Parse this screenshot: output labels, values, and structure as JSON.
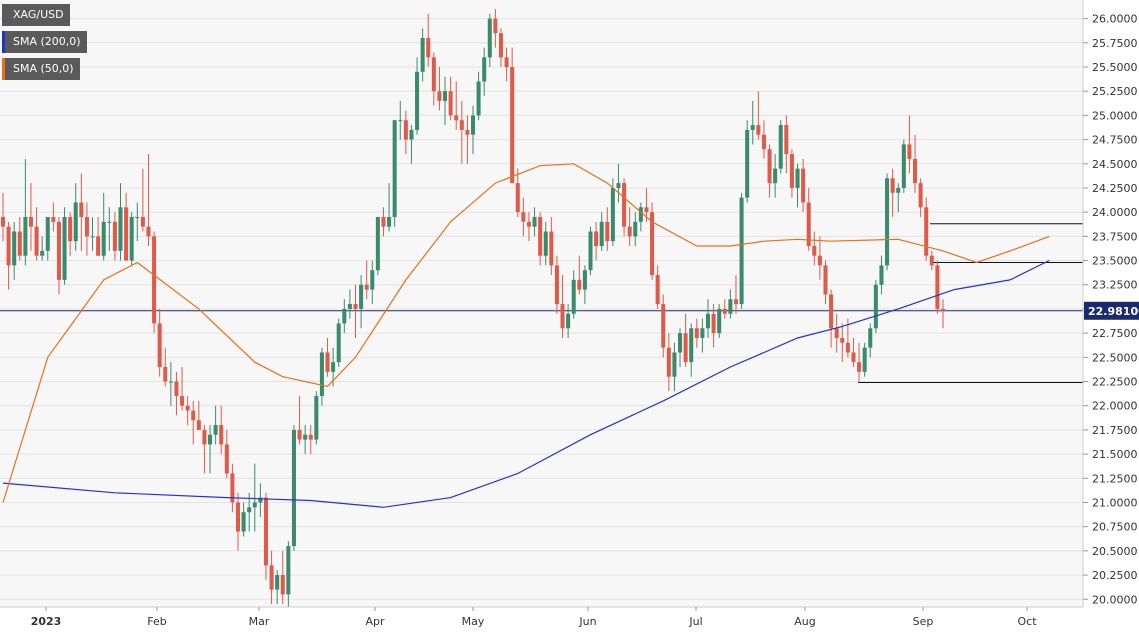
{
  "chart_data": {
    "type": "candlestick",
    "title": "XAG/USD",
    "x_tick_labels": [
      "2023",
      "Feb",
      "Mar",
      "Apr",
      "May",
      "Jun",
      "Jul",
      "Aug",
      "Sep",
      "Oct"
    ],
    "y_tick_labels": [
      "20.0000",
      "20.2500",
      "20.5000",
      "20.7500",
      "21.0000",
      "21.2500",
      "21.5000",
      "21.7500",
      "22.0000",
      "22.2500",
      "22.5000",
      "22.7500",
      "23.0000",
      "23.2500",
      "23.5000",
      "23.7500",
      "24.0000",
      "24.2500",
      "24.5000",
      "24.7500",
      "25.0000",
      "25.2500",
      "25.5000",
      "25.7500",
      "26.0000"
    ],
    "ylim": [
      19.92,
      26.12
    ],
    "current_price_label": "22.98100",
    "current_price": 22.981,
    "horizontal_levels": [
      23.88,
      23.48,
      22.24
    ],
    "legend": [
      {
        "name": "SMA (200,0)",
        "color": "#2233cc"
      },
      {
        "name": "SMA (50,0)",
        "color": "#e8701a"
      }
    ],
    "colors": {
      "up": "#3a8a6e",
      "down": "#e05a4a",
      "sma200": "#2233cc",
      "sma50": "#e8701a",
      "current": "#1a2a6c"
    },
    "sma200_keypoints": [
      [
        0,
        21.2
      ],
      [
        20,
        21.1
      ],
      [
        40,
        21.05
      ],
      [
        55,
        21.02
      ],
      [
        68,
        20.95
      ],
      [
        80,
        21.05
      ],
      [
        92,
        21.3
      ],
      [
        105,
        21.7
      ],
      [
        118,
        22.05
      ],
      [
        130,
        22.4
      ],
      [
        142,
        22.7
      ],
      [
        150,
        22.82
      ],
      [
        160,
        23.0
      ],
      [
        170,
        23.2
      ],
      [
        180,
        23.3
      ],
      [
        187,
        23.5
      ]
    ],
    "sma50_keypoints": [
      [
        0,
        21.0
      ],
      [
        8,
        22.5
      ],
      [
        18,
        23.3
      ],
      [
        24,
        23.48
      ],
      [
        35,
        23.0
      ],
      [
        45,
        22.45
      ],
      [
        50,
        22.3
      ],
      [
        58,
        22.2
      ],
      [
        63,
        22.5
      ],
      [
        72,
        23.3
      ],
      [
        80,
        23.9
      ],
      [
        88,
        24.3
      ],
      [
        96,
        24.48
      ],
      [
        102,
        24.5
      ],
      [
        108,
        24.3
      ],
      [
        116,
        23.9
      ],
      [
        124,
        23.65
      ],
      [
        130,
        23.65
      ],
      [
        136,
        23.7
      ],
      [
        142,
        23.72
      ],
      [
        148,
        23.7
      ],
      [
        160,
        23.72
      ],
      [
        168,
        23.6
      ],
      [
        174,
        23.48
      ],
      [
        180,
        23.6
      ],
      [
        187,
        23.75
      ]
    ],
    "ohlc": [
      [
        23.95,
        24.2,
        23.7,
        23.85
      ],
      [
        23.85,
        23.9,
        23.2,
        23.45
      ],
      [
        23.45,
        23.9,
        23.3,
        23.8
      ],
      [
        23.8,
        23.95,
        23.5,
        23.55
      ],
      [
        23.55,
        24.55,
        23.45,
        23.95
      ],
      [
        23.95,
        24.3,
        23.6,
        23.85
      ],
      [
        23.85,
        24.05,
        23.5,
        23.55
      ],
      [
        23.55,
        23.75,
        23.5,
        23.6
      ],
      [
        23.6,
        23.95,
        23.5,
        23.95
      ],
      [
        23.95,
        24.1,
        23.8,
        23.9
      ],
      [
        23.9,
        23.95,
        23.15,
        23.3
      ],
      [
        23.3,
        24.05,
        23.25,
        23.95
      ],
      [
        23.95,
        24.0,
        23.55,
        23.7
      ],
      [
        23.7,
        24.3,
        23.6,
        24.1
      ],
      [
        24.1,
        24.4,
        23.6,
        23.95
      ],
      [
        23.95,
        24.1,
        23.55,
        23.75
      ],
      [
        23.75,
        23.95,
        23.6,
        23.75
      ],
      [
        23.75,
        23.95,
        23.55,
        23.55
      ],
      [
        23.55,
        24.2,
        23.5,
        23.9
      ],
      [
        23.9,
        24.05,
        23.6,
        23.9
      ],
      [
        23.9,
        24.0,
        23.5,
        23.6
      ],
      [
        23.6,
        24.3,
        23.5,
        24.05
      ],
      [
        24.05,
        24.2,
        23.5,
        23.5
      ],
      [
        23.5,
        24.0,
        23.45,
        23.95
      ],
      [
        23.95,
        24.1,
        23.7,
        23.95
      ],
      [
        23.95,
        24.45,
        23.8,
        23.85
      ],
      [
        23.85,
        24.6,
        23.65,
        23.75
      ],
      [
        23.75,
        23.8,
        22.75,
        22.85
      ],
      [
        22.85,
        23.0,
        22.3,
        22.4
      ],
      [
        22.4,
        22.6,
        22.2,
        22.25
      ],
      [
        22.25,
        22.45,
        22.0,
        22.25
      ],
      [
        22.25,
        22.35,
        21.9,
        22.1
      ],
      [
        22.1,
        22.4,
        21.95,
        22.0
      ],
      [
        22.0,
        22.1,
        21.8,
        21.95
      ],
      [
        21.95,
        22.05,
        21.6,
        21.85
      ],
      [
        21.85,
        22.05,
        21.75,
        21.75
      ],
      [
        21.75,
        21.8,
        21.3,
        21.6
      ],
      [
        21.6,
        21.8,
        21.3,
        21.7
      ],
      [
        21.7,
        22.0,
        21.6,
        21.8
      ],
      [
        21.8,
        22.0,
        21.5,
        21.6
      ],
      [
        21.6,
        21.75,
        21.25,
        21.3
      ],
      [
        21.3,
        21.4,
        20.9,
        21.0
      ],
      [
        21.0,
        21.1,
        20.5,
        20.7
      ],
      [
        20.7,
        21.0,
        20.65,
        20.9
      ],
      [
        20.9,
        21.1,
        20.7,
        20.95
      ],
      [
        20.95,
        21.4,
        20.7,
        21.0
      ],
      [
        21.0,
        21.2,
        20.85,
        21.05
      ],
      [
        21.05,
        21.1,
        20.2,
        20.35
      ],
      [
        20.35,
        20.5,
        19.95,
        20.1
      ],
      [
        20.1,
        20.3,
        19.95,
        20.25
      ],
      [
        20.25,
        20.5,
        19.95,
        20.05
      ],
      [
        20.05,
        20.6,
        19.92,
        20.55
      ],
      [
        20.55,
        21.8,
        20.5,
        21.75
      ],
      [
        21.75,
        22.1,
        21.6,
        21.65
      ],
      [
        21.65,
        21.8,
        21.5,
        21.7
      ],
      [
        21.7,
        21.8,
        21.5,
        21.65
      ],
      [
        21.65,
        22.15,
        21.6,
        22.1
      ],
      [
        22.1,
        22.6,
        22.0,
        22.55
      ],
      [
        22.55,
        22.7,
        22.3,
        22.35
      ],
      [
        22.35,
        22.6,
        22.2,
        22.45
      ],
      [
        22.45,
        22.9,
        22.4,
        22.85
      ],
      [
        22.85,
        23.1,
        22.75,
        23.0
      ],
      [
        23.0,
        23.2,
        22.9,
        23.05
      ],
      [
        23.05,
        23.25,
        22.7,
        23.0
      ],
      [
        23.0,
        23.35,
        22.8,
        23.25
      ],
      [
        23.25,
        23.5,
        23.1,
        23.2
      ],
      [
        23.2,
        23.5,
        23.05,
        23.4
      ],
      [
        23.4,
        23.95,
        23.35,
        23.95
      ],
      [
        23.95,
        24.05,
        23.75,
        23.85
      ],
      [
        23.85,
        24.3,
        23.8,
        23.95
      ],
      [
        23.95,
        24.95,
        23.85,
        24.95
      ],
      [
        24.95,
        25.15,
        24.75,
        24.95
      ],
      [
        24.95,
        25.05,
        24.6,
        24.75
      ],
      [
        24.75,
        24.9,
        24.5,
        24.85
      ],
      [
        24.85,
        25.6,
        24.8,
        25.45
      ],
      [
        25.45,
        25.9,
        25.35,
        25.8
      ],
      [
        25.8,
        26.05,
        25.5,
        25.6
      ],
      [
        25.6,
        25.65,
        25.1,
        25.25
      ],
      [
        25.25,
        25.5,
        25.05,
        25.15
      ],
      [
        25.15,
        25.4,
        24.9,
        25.25
      ],
      [
        25.25,
        25.4,
        24.95,
        25.0
      ],
      [
        25.0,
        25.35,
        24.85,
        24.95
      ],
      [
        24.95,
        25.15,
        24.5,
        24.85
      ],
      [
        24.85,
        25.0,
        24.5,
        24.8
      ],
      [
        24.8,
        25.1,
        24.6,
        25.0
      ],
      [
        25.0,
        25.45,
        24.95,
        25.35
      ],
      [
        25.35,
        25.7,
        25.2,
        25.6
      ],
      [
        25.6,
        26.05,
        25.5,
        26.0
      ],
      [
        26.0,
        26.1,
        25.7,
        25.85
      ],
      [
        25.85,
        25.9,
        25.5,
        25.6
      ],
      [
        25.6,
        25.7,
        25.35,
        25.5
      ],
      [
        25.5,
        25.7,
        24.3,
        24.3
      ],
      [
        24.3,
        24.45,
        23.95,
        24.0
      ],
      [
        24.0,
        24.15,
        23.75,
        23.9
      ],
      [
        23.9,
        24.0,
        23.7,
        23.85
      ],
      [
        23.85,
        24.05,
        23.75,
        23.95
      ],
      [
        23.95,
        24.0,
        23.45,
        23.55
      ],
      [
        23.55,
        23.9,
        23.45,
        23.8
      ],
      [
        23.8,
        23.95,
        23.35,
        23.45
      ],
      [
        23.45,
        23.55,
        22.95,
        23.05
      ],
      [
        23.05,
        23.35,
        22.7,
        22.8
      ],
      [
        22.8,
        23.05,
        22.7,
        22.95
      ],
      [
        22.95,
        23.4,
        22.9,
        23.3
      ],
      [
        23.3,
        23.55,
        23.15,
        23.2
      ],
      [
        23.2,
        23.45,
        23.05,
        23.4
      ],
      [
        23.4,
        23.85,
        23.35,
        23.8
      ],
      [
        23.8,
        23.9,
        23.5,
        23.65
      ],
      [
        23.65,
        24.0,
        23.6,
        23.9
      ],
      [
        23.9,
        24.05,
        23.6,
        23.7
      ],
      [
        23.7,
        24.35,
        23.65,
        24.25
      ],
      [
        24.25,
        24.5,
        24.1,
        24.3
      ],
      [
        24.3,
        24.35,
        23.75,
        23.85
      ],
      [
        23.85,
        24.05,
        23.65,
        23.75
      ],
      [
        23.75,
        24.0,
        23.65,
        23.9
      ],
      [
        23.9,
        24.1,
        23.8,
        24.05
      ],
      [
        24.05,
        24.25,
        23.9,
        24.0
      ],
      [
        24.0,
        24.1,
        23.3,
        23.35
      ],
      [
        23.35,
        23.45,
        23.0,
        23.05
      ],
      [
        23.05,
        23.15,
        22.5,
        22.6
      ],
      [
        22.6,
        22.75,
        22.15,
        22.3
      ],
      [
        22.3,
        22.65,
        22.15,
        22.55
      ],
      [
        22.55,
        22.8,
        22.4,
        22.75
      ],
      [
        22.75,
        22.95,
        22.4,
        22.45
      ],
      [
        22.45,
        22.85,
        22.3,
        22.8
      ],
      [
        22.8,
        22.9,
        22.6,
        22.7
      ],
      [
        22.7,
        22.9,
        22.55,
        22.8
      ],
      [
        22.8,
        23.1,
        22.7,
        22.95
      ],
      [
        22.95,
        23.05,
        22.6,
        22.75
      ],
      [
        22.75,
        23.05,
        22.7,
        23.0
      ],
      [
        23.0,
        23.1,
        22.9,
        22.95
      ],
      [
        22.95,
        23.2,
        22.9,
        23.1
      ],
      [
        23.1,
        23.35,
        22.95,
        23.05
      ],
      [
        23.05,
        24.2,
        23.0,
        24.15
      ],
      [
        24.15,
        24.95,
        24.1,
        24.85
      ],
      [
        24.85,
        25.15,
        24.7,
        24.9
      ],
      [
        24.9,
        25.25,
        24.75,
        24.8
      ],
      [
        24.8,
        24.95,
        24.55,
        24.65
      ],
      [
        24.65,
        24.7,
        24.15,
        24.3
      ],
      [
        24.3,
        24.6,
        24.15,
        24.45
      ],
      [
        24.45,
        24.95,
        24.4,
        24.9
      ],
      [
        24.9,
        25.0,
        24.4,
        24.6
      ],
      [
        24.6,
        24.65,
        24.15,
        24.25
      ],
      [
        24.25,
        24.5,
        24.05,
        24.45
      ],
      [
        24.45,
        24.55,
        24.0,
        24.1
      ],
      [
        24.1,
        24.25,
        23.6,
        23.65
      ],
      [
        23.65,
        23.8,
        23.45,
        23.55
      ],
      [
        23.55,
        23.75,
        23.3,
        23.45
      ],
      [
        23.45,
        23.5,
        23.05,
        23.15
      ],
      [
        23.15,
        23.2,
        22.6,
        22.8
      ],
      [
        22.8,
        22.95,
        22.55,
        22.7
      ],
      [
        22.7,
        22.85,
        22.45,
        22.65
      ],
      [
        22.65,
        22.9,
        22.5,
        22.55
      ],
      [
        22.55,
        22.7,
        22.4,
        22.45
      ],
      [
        22.45,
        22.65,
        22.24,
        22.35
      ],
      [
        22.35,
        22.65,
        22.3,
        22.6
      ],
      [
        22.6,
        22.85,
        22.5,
        22.8
      ],
      [
        22.8,
        23.3,
        22.75,
        23.25
      ],
      [
        23.25,
        23.55,
        23.15,
        23.45
      ],
      [
        23.45,
        24.4,
        23.4,
        24.35
      ],
      [
        24.35,
        24.45,
        23.95,
        24.2
      ],
      [
        24.2,
        24.3,
        24.0,
        24.25
      ],
      [
        24.25,
        24.75,
        24.2,
        24.7
      ],
      [
        24.7,
        25.0,
        24.4,
        24.55
      ],
      [
        24.55,
        24.8,
        24.2,
        24.3
      ],
      [
        24.3,
        24.35,
        23.95,
        24.05
      ],
      [
        24.05,
        24.15,
        23.5,
        23.55
      ],
      [
        23.55,
        23.6,
        23.4,
        23.45
      ],
      [
        23.45,
        23.5,
        22.95,
        23.0
      ],
      [
        23.0,
        23.1,
        22.8,
        22.98
      ]
    ]
  }
}
